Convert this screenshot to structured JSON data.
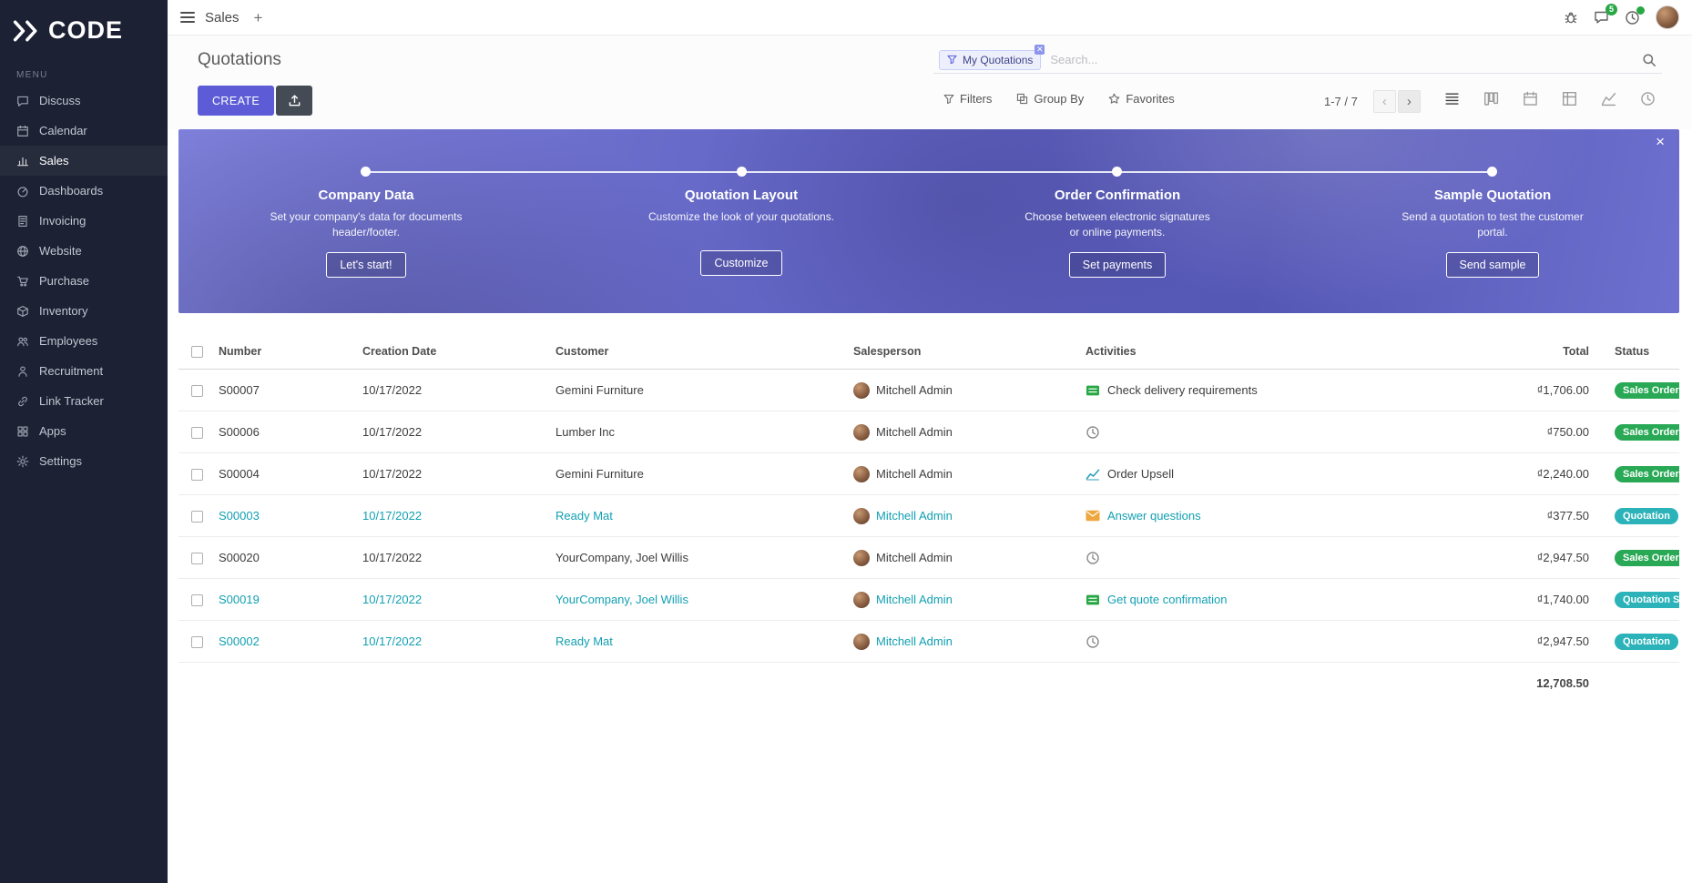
{
  "brand": {
    "logo_text": "CODE"
  },
  "sidebar": {
    "menu_label": "MENU",
    "items": [
      {
        "label": "Discuss",
        "icon": "chat",
        "active": false
      },
      {
        "label": "Calendar",
        "icon": "calendar",
        "active": false
      },
      {
        "label": "Sales",
        "icon": "sales",
        "active": true
      },
      {
        "label": "Dashboards",
        "icon": "dashboard",
        "active": false
      },
      {
        "label": "Invoicing",
        "icon": "invoice",
        "active": false
      },
      {
        "label": "Website",
        "icon": "globe",
        "active": false
      },
      {
        "label": "Purchase",
        "icon": "purchase",
        "active": false
      },
      {
        "label": "Inventory",
        "icon": "inventory",
        "active": false
      },
      {
        "label": "Employees",
        "icon": "employees",
        "active": false
      },
      {
        "label": "Recruitment",
        "icon": "recruitment",
        "active": false
      },
      {
        "label": "Link Tracker",
        "icon": "link",
        "active": false
      },
      {
        "label": "Apps",
        "icon": "apps",
        "active": false
      },
      {
        "label": "Settings",
        "icon": "gear",
        "active": false
      }
    ]
  },
  "topbar": {
    "app_name": "Sales",
    "messages_badge": "5",
    "activities_badge": ""
  },
  "control_panel": {
    "title": "Quotations",
    "create_label": "CREATE",
    "search": {
      "facet_label": "My Quotations",
      "placeholder": "Search..."
    },
    "filters_label": "Filters",
    "group_by_label": "Group By",
    "favorites_label": "Favorites",
    "pager_text": "1-7 / 7",
    "view_switcher": [
      {
        "name": "list",
        "active": true
      },
      {
        "name": "kanban",
        "active": false
      },
      {
        "name": "calendar",
        "active": false
      },
      {
        "name": "pivot",
        "active": false
      },
      {
        "name": "graph",
        "active": false
      },
      {
        "name": "activity",
        "active": false
      }
    ]
  },
  "banner": {
    "close_label": "×",
    "steps": [
      {
        "title": "Company Data",
        "desc": "Set your company's data for documents header/footer.",
        "button": "Let's start!"
      },
      {
        "title": "Quotation Layout",
        "desc": "Customize the look of your quotations.",
        "button": "Customize"
      },
      {
        "title": "Order Confirmation",
        "desc": "Choose between electronic signatures or online payments.",
        "button": "Set payments"
      },
      {
        "title": "Sample Quotation",
        "desc": "Send a quotation to test the customer portal.",
        "button": "Send sample"
      }
    ]
  },
  "table": {
    "columns": [
      "Number",
      "Creation Date",
      "Customer",
      "Salesperson",
      "Activities",
      "Total",
      "Status"
    ],
    "rows": [
      {
        "number": "S00007",
        "date": "10/17/2022",
        "customer": "Gemini Furniture",
        "salesperson": "Mitchell Admin",
        "activity": "Check delivery requirements",
        "activity_icon": "tasklist",
        "total": "₫1,706.00",
        "status": "Sales Order",
        "status_type": "sales_order",
        "highlight": false
      },
      {
        "number": "S00006",
        "date": "10/17/2022",
        "customer": "Lumber Inc",
        "salesperson": "Mitchell Admin",
        "activity": "",
        "activity_icon": "clock",
        "total": "₫750.00",
        "status": "Sales Order",
        "status_type": "sales_order",
        "highlight": false
      },
      {
        "number": "S00004",
        "date": "10/17/2022",
        "customer": "Gemini Furniture",
        "salesperson": "Mitchell Admin",
        "activity": "Order Upsell",
        "activity_icon": "chart",
        "total": "₫2,240.00",
        "status": "Sales Order",
        "status_type": "sales_order",
        "highlight": false
      },
      {
        "number": "S00003",
        "date": "10/17/2022",
        "customer": "Ready Mat",
        "salesperson": "Mitchell Admin",
        "activity": "Answer questions",
        "activity_icon": "envelope",
        "total": "₫377.50",
        "status": "Quotation",
        "status_type": "quotation",
        "highlight": true
      },
      {
        "number": "S00020",
        "date": "10/17/2022",
        "customer": "YourCompany, Joel Willis",
        "salesperson": "Mitchell Admin",
        "activity": "",
        "activity_icon": "clock",
        "total": "₫2,947.50",
        "status": "Sales Order",
        "status_type": "sales_order",
        "highlight": false
      },
      {
        "number": "S00019",
        "date": "10/17/2022",
        "customer": "YourCompany, Joel Willis",
        "salesperson": "Mitchell Admin",
        "activity": "Get quote confirmation",
        "activity_icon": "tasklist",
        "total": "₫1,740.00",
        "status": "Quotation Sent",
        "status_type": "quotation",
        "highlight": true
      },
      {
        "number": "S00002",
        "date": "10/17/2022",
        "customer": "Ready Mat",
        "salesperson": "Mitchell Admin",
        "activity": "",
        "activity_icon": "clock",
        "total": "₫2,947.50",
        "status": "Quotation",
        "status_type": "quotation",
        "highlight": true
      }
    ],
    "total_sum": "12,708.50"
  }
}
